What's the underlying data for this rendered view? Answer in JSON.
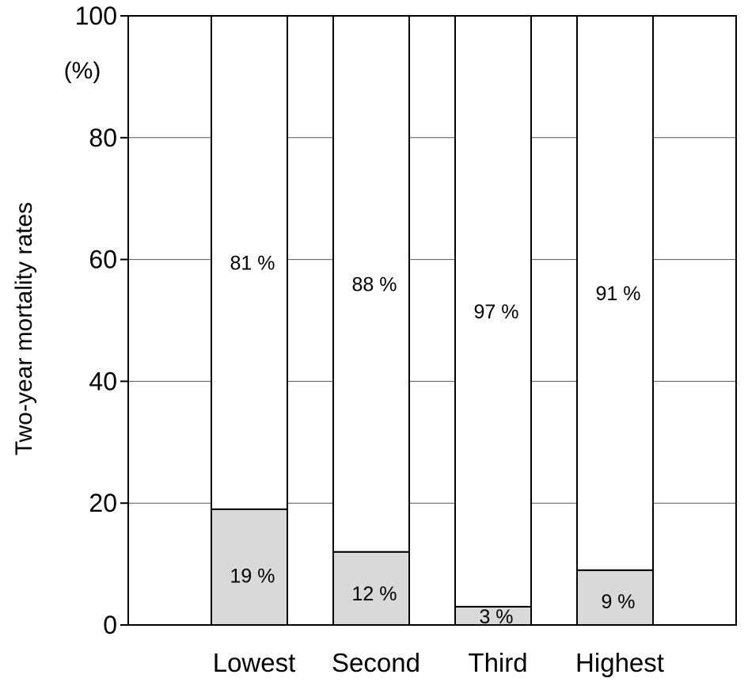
{
  "chart_data": {
    "type": "bar",
    "stacked": true,
    "categories": [
      "Lowest",
      "Second",
      "Third",
      "Highest"
    ],
    "series": [
      {
        "values": [
          19,
          12,
          3,
          9
        ],
        "labels": [
          "19 %",
          "12 %",
          "3 %",
          "9 %"
        ],
        "color": "#d9d9d9"
      },
      {
        "values": [
          81,
          88,
          97,
          91
        ],
        "labels": [
          "81 %",
          "88 %",
          "97 %",
          "91 %"
        ],
        "color": "#ffffff"
      }
    ],
    "title": "",
    "xlabel": "",
    "ylabel": "Two-year mortality rates",
    "yunit": "(%)",
    "ylim": [
      0,
      100
    ],
    "yticks": [
      0,
      20,
      40,
      60,
      80,
      100
    ],
    "ytick_labels": [
      "0",
      "20",
      "40",
      "60",
      "80",
      "100"
    ],
    "grid": true,
    "legend": "none"
  }
}
